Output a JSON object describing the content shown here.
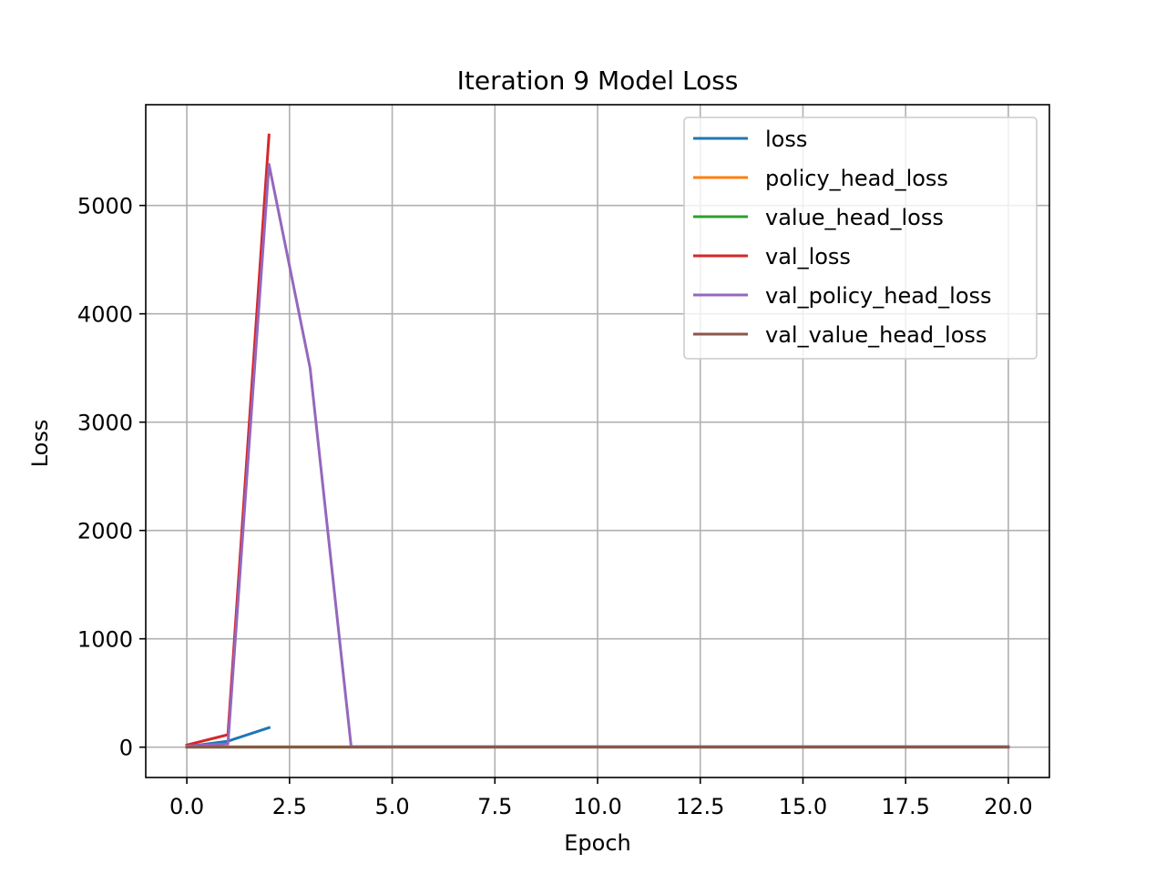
{
  "chart_data": {
    "type": "line",
    "title": "Iteration 9 Model Loss",
    "xlabel": "Epoch",
    "ylabel": "Loss",
    "xlim": [
      -1,
      21
    ],
    "ylim": [
      -280,
      5930
    ],
    "xticks": [
      0.0,
      2.5,
      5.0,
      7.5,
      10.0,
      12.5,
      15.0,
      17.5,
      20.0
    ],
    "xtick_labels": [
      "0.0",
      "2.5",
      "5.0",
      "7.5",
      "10.0",
      "12.5",
      "15.0",
      "17.5",
      "20.0"
    ],
    "yticks": [
      0,
      1000,
      2000,
      3000,
      4000,
      5000
    ],
    "ytick_labels": [
      "0",
      "1000",
      "2000",
      "3000",
      "4000",
      "5000"
    ],
    "grid": true,
    "legend_position": "top-right",
    "series": [
      {
        "name": "loss",
        "color": "#1f77b4",
        "x": [
          0,
          1,
          2
        ],
        "y": [
          5,
          55,
          180
        ]
      },
      {
        "name": "policy_head_loss",
        "color": "#ff7f0e",
        "x": [
          0,
          1,
          2,
          3,
          4,
          5,
          6,
          7,
          8,
          9,
          10,
          11,
          12,
          13,
          14,
          15,
          16,
          17,
          18,
          19,
          20
        ],
        "y": [
          3,
          3,
          3,
          3,
          3,
          3,
          3,
          3,
          3,
          3,
          3,
          3,
          3,
          3,
          3,
          3,
          3,
          3,
          3,
          3,
          3
        ]
      },
      {
        "name": "value_head_loss",
        "color": "#2ca02c",
        "x": [
          0,
          1,
          2,
          3,
          4,
          5,
          6,
          7,
          8,
          9,
          10,
          11,
          12,
          13,
          14,
          15,
          16,
          17,
          18,
          19,
          20
        ],
        "y": [
          1,
          1,
          1,
          1,
          1,
          1,
          1,
          1,
          1,
          1,
          1,
          1,
          1,
          1,
          1,
          1,
          1,
          1,
          1,
          1,
          1
        ]
      },
      {
        "name": "val_loss",
        "color": "#d62728",
        "x": [
          0,
          1,
          2
        ],
        "y": [
          20,
          115,
          5650
        ]
      },
      {
        "name": "val_policy_head_loss",
        "color": "#9467bd",
        "x": [
          0,
          1,
          2,
          3,
          4,
          5,
          6,
          7,
          8,
          9,
          10,
          11,
          12,
          13,
          14,
          15,
          16,
          17,
          18,
          19,
          20
        ],
        "y": [
          10,
          30,
          5380,
          3500,
          5,
          5,
          5,
          5,
          5,
          5,
          5,
          5,
          5,
          5,
          5,
          5,
          5,
          5,
          5,
          5,
          5
        ]
      },
      {
        "name": "val_value_head_loss",
        "color": "#8c564b",
        "x": [
          0,
          1,
          2,
          3,
          4,
          5,
          6,
          7,
          8,
          9,
          10,
          11,
          12,
          13,
          14,
          15,
          16,
          17,
          18,
          19,
          20
        ],
        "y": [
          1,
          1,
          1,
          1,
          1,
          1,
          1,
          1,
          1,
          1,
          1,
          1,
          1,
          1,
          1,
          1,
          1,
          1,
          1,
          1,
          1
        ]
      }
    ]
  }
}
